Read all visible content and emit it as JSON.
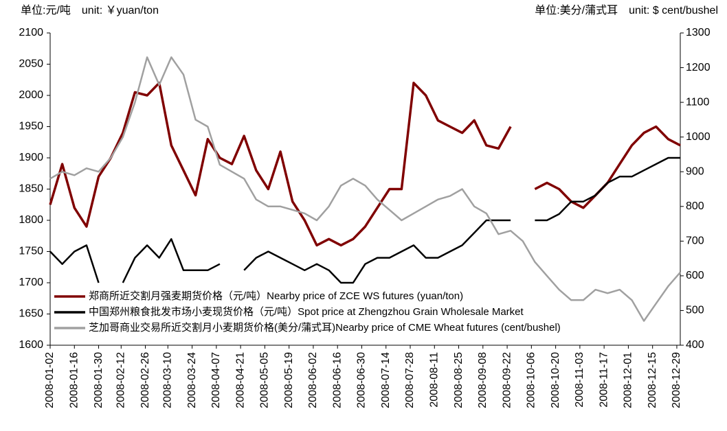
{
  "chart_data": {
    "type": "line",
    "left_unit": "单位:元/吨　unit: ￥yuan/ton",
    "right_unit": "单位:美分/蒲式耳　unit: $ cent/bushel",
    "x": [
      "2008-01-02",
      "2008-01-09",
      "2008-01-16",
      "2008-01-23",
      "2008-01-30",
      "2008-02-06",
      "2008-02-13",
      "2008-02-20",
      "2008-02-27",
      "2008-03-05",
      "2008-03-12",
      "2008-03-19",
      "2008-03-26",
      "2008-04-02",
      "2008-04-09",
      "2008-04-16",
      "2008-04-23",
      "2008-04-30",
      "2008-05-07",
      "2008-05-14",
      "2008-05-21",
      "2008-05-28",
      "2008-06-04",
      "2008-06-11",
      "2008-06-18",
      "2008-06-25",
      "2008-07-02",
      "2008-07-09",
      "2008-07-16",
      "2008-07-23",
      "2008-07-30",
      "2008-08-06",
      "2008-08-13",
      "2008-08-20",
      "2008-08-27",
      "2008-09-03",
      "2008-09-10",
      "2008-09-17",
      "2008-09-24",
      "2008-10-01",
      "2008-10-08",
      "2008-10-15",
      "2008-10-22",
      "2008-10-29",
      "2008-11-05",
      "2008-11-12",
      "2008-11-19",
      "2008-11-26",
      "2008-12-03",
      "2008-12-10",
      "2008-12-17",
      "2008-12-24",
      "2008-12-31"
    ],
    "xlim": [
      "2008-01-02",
      "2008-12-31"
    ],
    "xticks": [
      "2008-01-02",
      "2008-01-16",
      "2008-01-30",
      "2008-02-12",
      "2008-02-26",
      "2008-03-10",
      "2008-03-24",
      "2008-04-07",
      "2008-04-21",
      "2008-05-05",
      "2008-05-19",
      "2008-06-02",
      "2008-06-16",
      "2008-06-30",
      "2008-07-14",
      "2008-07-28",
      "2008-08-11",
      "2008-08-25",
      "2008-09-08",
      "2008-09-22",
      "2008-10-06",
      "2008-10-20",
      "2008-11-03",
      "2008-11-17",
      "2008-12-01",
      "2008-12-15",
      "2008-12-29"
    ],
    "ylim": [
      1600,
      2100
    ],
    "yticks": [
      1600,
      1650,
      1700,
      1750,
      1800,
      1850,
      1900,
      1950,
      2000,
      2050,
      2100
    ],
    "y2lim": [
      400,
      1300
    ],
    "y2ticks": [
      400,
      500,
      600,
      700,
      800,
      900,
      1000,
      1100,
      1200,
      1300
    ],
    "legend": "lower left",
    "series": [
      {
        "name": "郑商所近交割月强麦期货价格（元/吨）Nearby price of ZCE WS futures (yuan/ton)",
        "color": "#800000",
        "values": [
          1825,
          1890,
          1820,
          1790,
          1870,
          1900,
          1940,
          2005,
          2000,
          2020,
          1920,
          1880,
          1840,
          1930,
          1900,
          1890,
          1935,
          1880,
          1850,
          1910,
          1830,
          1800,
          1760,
          1770,
          1760,
          1770,
          1790,
          1820,
          1850,
          1850,
          2020,
          2000,
          1960,
          1950,
          1940,
          1960,
          1920,
          1915,
          1950,
          null,
          1850,
          1860,
          1850,
          1830,
          1820,
          1840,
          1860,
          1890,
          1920,
          1940,
          1950,
          1930,
          1920
        ]
      },
      {
        "name": "中国郑州粮食批发市场小麦现货价格（元/吨）Spot price at Zhengzhou Grain Wholesale Market",
        "color": "#000000",
        "values": [
          1750,
          1730,
          1750,
          1760,
          1700,
          null,
          1700,
          1740,
          1760,
          1740,
          1770,
          1720,
          1720,
          1720,
          1730,
          null,
          1720,
          1740,
          1750,
          1740,
          1730,
          1720,
          1730,
          1720,
          1700,
          1700,
          1730,
          1740,
          1740,
          1750,
          1760,
          1740,
          1740,
          1750,
          1760,
          1780,
          1800,
          1800,
          1800,
          null,
          1800,
          1800,
          1810,
          1830,
          1830,
          1840,
          1860,
          1870,
          1870,
          1880,
          1890,
          1900,
          1900
        ]
      },
      {
        "name": "芝加哥商业交易所近交割月小麦期货价格(美分/蒲式耳)Nearby price of CME Wheat futures (cent/bushel)",
        "color": "#a0a0a0",
        "axis": "y2",
        "values": [
          880,
          900,
          890,
          910,
          900,
          940,
          1000,
          1100,
          1230,
          1150,
          1230,
          1180,
          1050,
          1030,
          920,
          900,
          880,
          820,
          800,
          800,
          790,
          780,
          760,
          800,
          860,
          880,
          860,
          820,
          790,
          760,
          780,
          800,
          820,
          830,
          850,
          800,
          780,
          720,
          730,
          700,
          640,
          600,
          560,
          530,
          530,
          560,
          550,
          560,
          530,
          470,
          520,
          570,
          610
        ]
      }
    ]
  }
}
